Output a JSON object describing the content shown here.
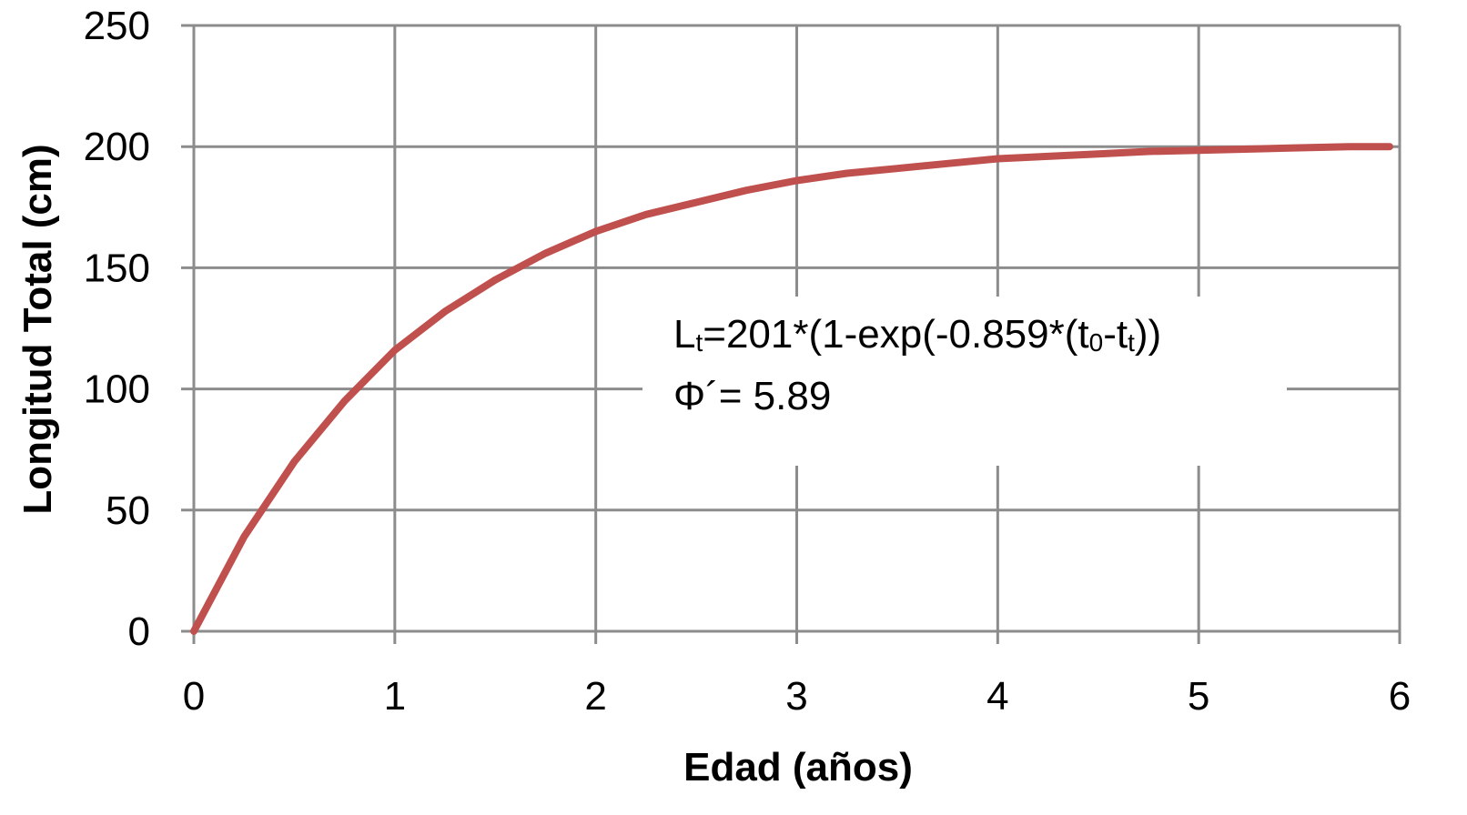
{
  "chart_data": {
    "type": "line",
    "title": "",
    "xlabel": "Edad (años)",
    "ylabel": "Longitud Total (cm)",
    "xlim": [
      0,
      6
    ],
    "ylim": [
      0,
      250
    ],
    "xticks": [
      "0",
      "1",
      "2",
      "3",
      "4",
      "5",
      "6"
    ],
    "yticks": [
      "0",
      "50",
      "100",
      "150",
      "200",
      "250"
    ],
    "grid": true,
    "legend": "none",
    "series": [
      {
        "color": "#c0504d",
        "x": [
          0,
          0.25,
          0.5,
          0.75,
          1,
          1.25,
          1.5,
          1.75,
          2,
          2.25,
          2.5,
          2.75,
          3,
          3.25,
          3.5,
          3.75,
          4,
          4.25,
          4.5,
          4.75,
          5,
          5.25,
          5.5,
          5.75,
          5.95
        ],
        "y": [
          0,
          39,
          70,
          95,
          116,
          132,
          145,
          156,
          165,
          172,
          177,
          182,
          186,
          189,
          191,
          193,
          195,
          196,
          197,
          198,
          198.5,
          199,
          199.5,
          200,
          200
        ]
      }
    ],
    "annotation": {
      "line1_prefix": "L",
      "line1_sub1": "t",
      "line1_mid": "=201*(1-exp(-0.859*(t",
      "line1_sub2": "0",
      "line1_mid2": "-t",
      "line1_sub3": "t",
      "line1_suffix": "))",
      "line2": "Φ´= 5.89"
    },
    "colors": {
      "grid": "#8c8c8c",
      "line": "#c0504d",
      "background": "#ffffff"
    }
  }
}
